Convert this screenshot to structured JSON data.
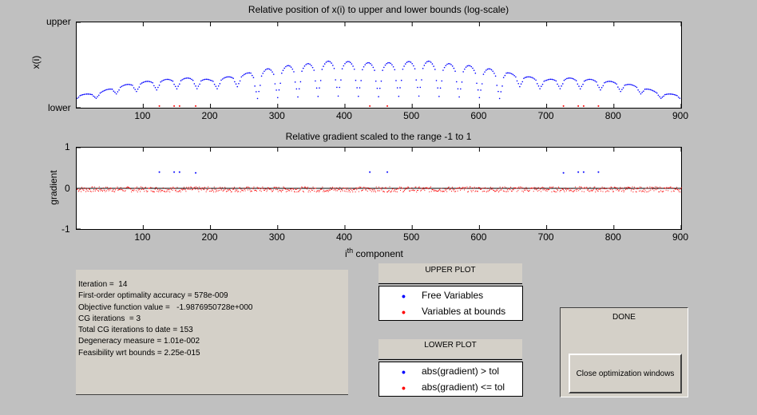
{
  "chart_data": [
    {
      "type": "scatter",
      "title": "Relative position of x(i) to upper and lower bounds (log-scale)",
      "xlabel": "",
      "ylabel": "x(i)",
      "xlim": [
        1,
        900
      ],
      "x_ticks": [
        "100",
        "200",
        "300",
        "400",
        "500",
        "600",
        "700",
        "800",
        "900"
      ],
      "y_ticks": [
        "upper",
        "lower"
      ],
      "series": [
        {
          "color": "#0000ff",
          "description_profile": "symmetric about i=450; level between lower(0) and upper(1)",
          "envelope": [
            [
              1,
              0.15
            ],
            [
              30,
              0.17
            ],
            [
              60,
              0.25
            ],
            [
              95,
              0.3
            ],
            [
              130,
              0.33
            ],
            [
              170,
              0.35
            ],
            [
              200,
              0.33
            ],
            [
              240,
              0.38
            ],
            [
              280,
              0.45
            ],
            [
              320,
              0.5
            ],
            [
              350,
              0.52
            ],
            [
              380,
              0.55
            ],
            [
              410,
              0.54
            ],
            [
              450,
              0.52
            ],
            [
              490,
              0.54
            ],
            [
              520,
              0.55
            ],
            [
              550,
              0.52
            ],
            [
              580,
              0.5
            ],
            [
              620,
              0.45
            ],
            [
              660,
              0.38
            ],
            [
              700,
              0.33
            ],
            [
              730,
              0.35
            ],
            [
              770,
              0.33
            ],
            [
              805,
              0.3
            ],
            [
              840,
              0.25
            ],
            [
              870,
              0.17
            ],
            [
              900,
              0.15
            ]
          ]
        },
        {
          "color": "#ff0000",
          "points_x": [
            124,
            146,
            154,
            178,
            437,
            463,
            725,
            747,
            755,
            777
          ],
          "points_y": [
            0.02,
            0.02,
            0.02,
            0.02,
            0.02,
            0.02,
            0.02,
            0.02,
            0.02,
            0.02
          ]
        }
      ]
    },
    {
      "type": "scatter",
      "title": "Relative gradient scaled to the range -1 to 1",
      "xlabel": "i^th component",
      "ylabel": "gradient",
      "xlim": [
        1,
        900
      ],
      "ylim": [
        -1,
        1
      ],
      "x_ticks": [
        "100",
        "200",
        "300",
        "400",
        "500",
        "600",
        "700",
        "800",
        "900"
      ],
      "y_ticks": [
        "1",
        "0",
        "-1"
      ],
      "series": [
        {
          "color": "#0000ff",
          "points_x": [
            124,
            146,
            154,
            178,
            437,
            463,
            725,
            747,
            755,
            777
          ],
          "points_y": [
            0.4,
            0.4,
            0.4,
            0.38,
            0.4,
            0.4,
            0.38,
            0.4,
            0.4,
            0.4
          ]
        },
        {
          "color": "#ff0000",
          "band_y": [
            -0.08,
            0.05
          ]
        }
      ]
    }
  ],
  "upper_plot": {
    "title": "Relative position of x(i) to upper and lower bounds (log-scale)",
    "ylabel": "x(i)",
    "y_upper": "upper",
    "y_lower": "lower"
  },
  "lower_plot": {
    "title": "Relative gradient scaled to the range -1 to 1",
    "ylabel": "gradient",
    "y_1": "1",
    "y_0": "0",
    "y_m1": "-1",
    "xlabel_main": "i",
    "xlabel_sup": "th",
    "xlabel_rest": " component"
  },
  "x_ticks": [
    "100",
    "200",
    "300",
    "400",
    "500",
    "600",
    "700",
    "800",
    "900"
  ],
  "info": {
    "lines": [
      "Iteration =  14",
      "First-order optimality accuracy = 578e-009",
      "Objective function value =   -1.9876950728e+000",
      "CG iterations  = 3",
      "Total CG iterations to date = 153",
      "Degeneracy measure = 1.01e-002",
      "Feasibility wrt bounds = 2.25e-015"
    ]
  },
  "upper_legend": {
    "title": "UPPER PLOT",
    "items": [
      {
        "label": "Free Variables",
        "color": "#0000ff"
      },
      {
        "label": "Variables at bounds",
        "color": "#ff0000"
      }
    ]
  },
  "lower_legend": {
    "title": "LOWER PLOT",
    "items": [
      {
        "label": "abs(gradient) > tol",
        "color": "#0000ff"
      },
      {
        "label": "abs(gradient) <= tol",
        "color": "#ff0000"
      }
    ]
  },
  "done_panel": {
    "title": "DONE",
    "button_label": "Close optimization windows"
  }
}
